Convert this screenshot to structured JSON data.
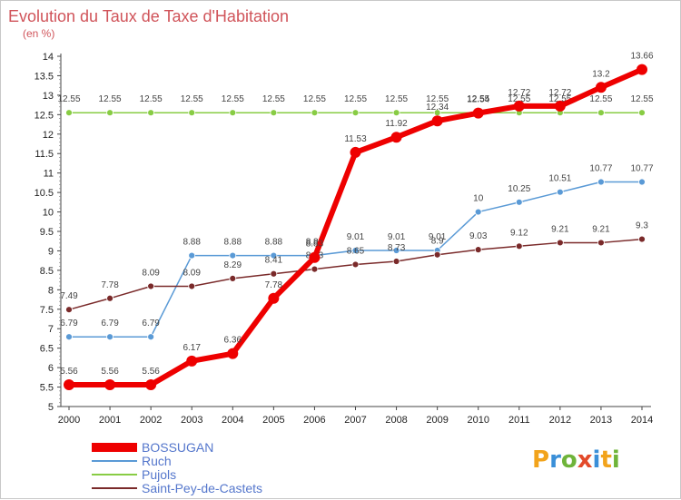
{
  "chart_data": {
    "type": "line",
    "title": "Evolution du Taux de Taxe d'Habitation",
    "subtitle": "(en %)",
    "x": [
      "2000",
      "2001",
      "2002",
      "2003",
      "2004",
      "2005",
      "2006",
      "2007",
      "2008",
      "2009",
      "2010",
      "2011",
      "2012",
      "2013",
      "2014"
    ],
    "ylim": [
      5,
      14
    ],
    "y_ticks": [
      "5",
      "5.5",
      "6",
      "6.5",
      "7",
      "7.5",
      "8",
      "8.5",
      "9",
      "9.5",
      "10",
      "10.5",
      "11",
      "11.5",
      "12",
      "12.5",
      "13",
      "13.5",
      "14"
    ],
    "grid": false,
    "legend_position": "bottom-left",
    "series": [
      {
        "name": "BOSSUGAN",
        "color": "#ee0000",
        "values": [
          5.56,
          5.56,
          5.56,
          6.17,
          6.36,
          7.78,
          8.83,
          11.53,
          11.92,
          12.34,
          12.54,
          12.72,
          12.72,
          13.2,
          13.66
        ],
        "labels": [
          "5.56",
          "5.56",
          "5.56",
          "6.17",
          "6.36",
          "7.78",
          "8.83",
          "11.53",
          "11.92",
          "12.34",
          "12.54",
          "12.72",
          "12.72",
          "13.2",
          "13.66"
        ]
      },
      {
        "name": "Ruch",
        "color": "#5a9ad6",
        "values": [
          6.79,
          6.79,
          6.79,
          8.88,
          8.88,
          8.88,
          8.88,
          9.01,
          9.01,
          9.01,
          10,
          10.25,
          10.51,
          10.77,
          10.77
        ],
        "labels": [
          "6.79",
          "6.79",
          "6.79",
          "8.88",
          "8.88",
          "8.88",
          "8.88",
          "9.01",
          "9.01",
          "9.01",
          "10",
          "10.25",
          "10.51",
          "10.77",
          "10.77"
        ]
      },
      {
        "name": "Pujols",
        "color": "#88cc44",
        "values": [
          12.55,
          12.55,
          12.55,
          12.55,
          12.55,
          12.55,
          12.55,
          12.55,
          12.55,
          12.55,
          12.55,
          12.55,
          12.55,
          12.55,
          12.55
        ],
        "labels": [
          "12.55",
          "12.55",
          "12.55",
          "12.55",
          "12.55",
          "12.55",
          "12.55",
          "12.55",
          "12.55",
          "12.55",
          "12.55",
          "12.55",
          "12.55",
          "12.55",
          "12.55"
        ]
      },
      {
        "name": "Saint-Pey-de-Castets",
        "color": "#7a2a2a",
        "values": [
          7.49,
          7.78,
          8.09,
          8.09,
          8.29,
          8.41,
          8.53,
          8.65,
          8.73,
          8.9,
          9.03,
          9.12,
          9.21,
          9.21,
          9.3
        ],
        "labels": [
          "7.49",
          "7.78",
          "8.09",
          "8.09",
          "8.29",
          "8.41",
          "8.53",
          "8.65",
          "8.73",
          "8.9",
          "9.03",
          "9.12",
          "9.21",
          "9.21",
          "9.3"
        ]
      }
    ]
  },
  "logo": {
    "text": "Proxiti"
  }
}
